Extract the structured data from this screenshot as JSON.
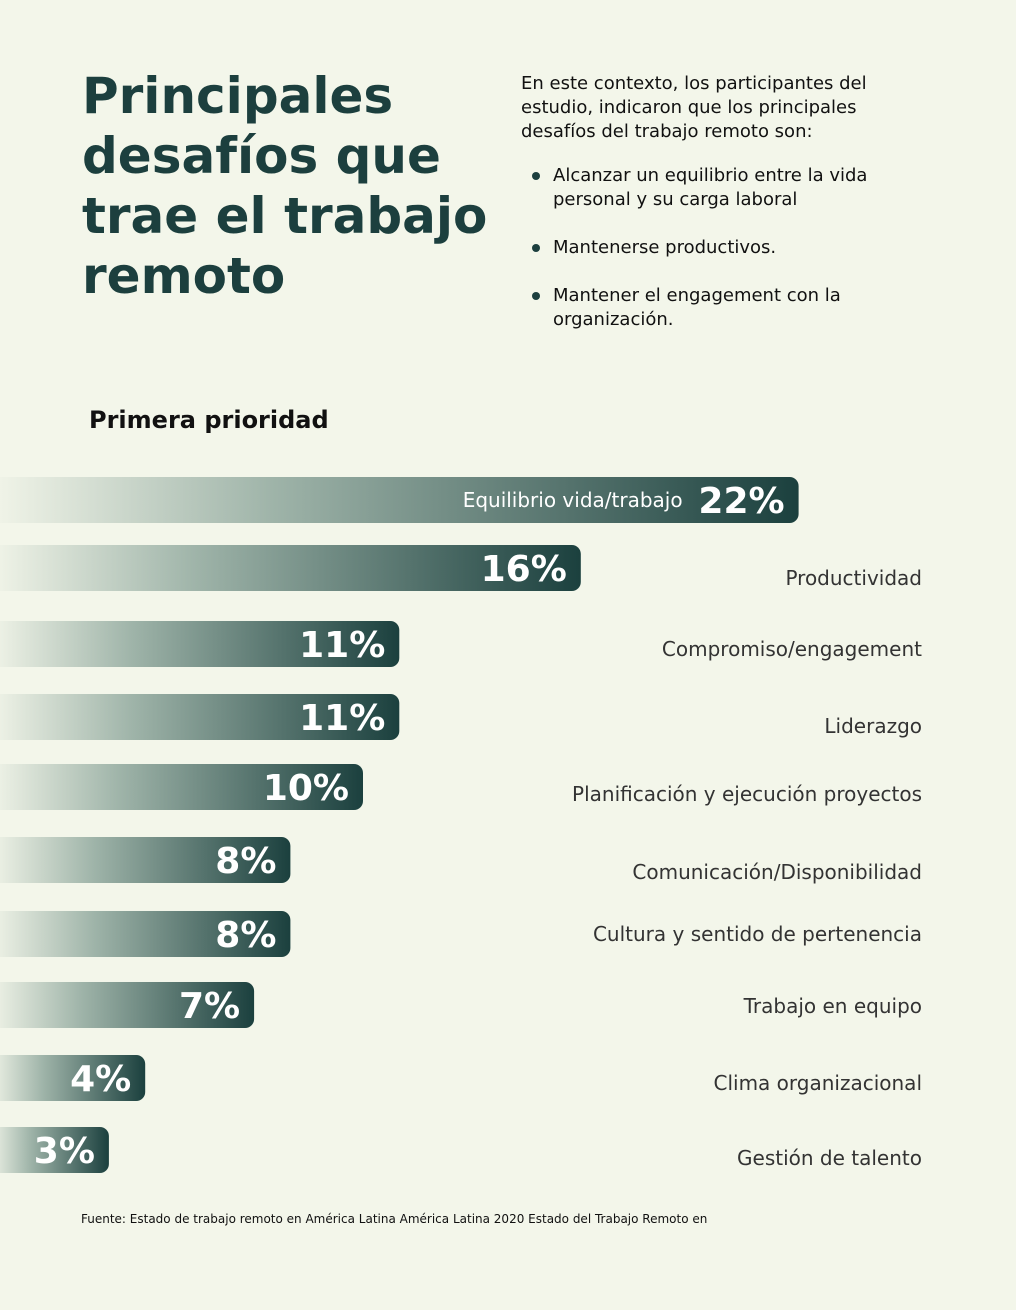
{
  "header": {
    "title": "Principales desafíos que trae el trabajo remoto",
    "intro": "En este contexto, los participantes del estudio, indicaron que los principales desafíos del trabajo remoto son:",
    "bullets": [
      "Alcanzar un equilibrio entre la vida personal y su carga laboral",
      "Mantenerse productivos.",
      "Mantener el engagement con la organización."
    ]
  },
  "chart_data": {
    "type": "bar",
    "orientation": "horizontal",
    "title": "Primera prioridad",
    "categories": [
      "Equilibrio vida/trabajo",
      "Productividad",
      "Compromiso/engagement",
      "Liderazgo",
      "Planificación y ejecución proyectos",
      "Comunicación/Disponibilidad",
      "Cultura y sentido de pertenencia",
      "Trabajo en equipo",
      "Clima organizacional",
      "Gestión de talento"
    ],
    "values": [
      22,
      16,
      11,
      11,
      10,
      8,
      8,
      7,
      4,
      3
    ],
    "value_labels": [
      "22%",
      "16%",
      "11%",
      "11%",
      "10%",
      "8%",
      "8%",
      "7%",
      "4%",
      "3%"
    ],
    "unit": "%",
    "colors": {
      "bar_dark": "#1b403e",
      "bar_light": "#f3f6ea",
      "value_text": "#ffffff",
      "label_text": "#333333"
    }
  },
  "footer": {
    "source": "Fuente: Estado de trabajo remoto en América Latina América Latina 2020 Estado del Trabajo Remoto en"
  }
}
